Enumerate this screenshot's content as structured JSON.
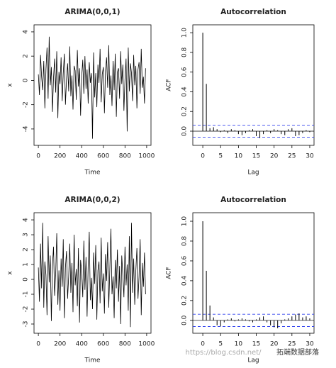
{
  "chart_data": [
    {
      "type": "line",
      "title": "ARIMA(0,0,1)",
      "x_label": "Time",
      "y_label": "x",
      "color": "#000000",
      "x": [
        0,
        10,
        20,
        30,
        40,
        50,
        60,
        70,
        80,
        90,
        100,
        110,
        120,
        130,
        140,
        150,
        160,
        170,
        180,
        190,
        200,
        210,
        220,
        230,
        240,
        250,
        260,
        270,
        280,
        290,
        300,
        310,
        320,
        330,
        340,
        350,
        360,
        370,
        380,
        390,
        400,
        410,
        420,
        430,
        440,
        450,
        460,
        470,
        480,
        490,
        500,
        510,
        520,
        530,
        540,
        550,
        560,
        570,
        580,
        590,
        600,
        610,
        620,
        630,
        640,
        650,
        660,
        670,
        680,
        690,
        700,
        710,
        720,
        730,
        740,
        750,
        760,
        770,
        780,
        790,
        800,
        810,
        820,
        830,
        840,
        850,
        860,
        870,
        880,
        890,
        900,
        910,
        920,
        930,
        940,
        950,
        960,
        970,
        980,
        990
      ],
      "values": [
        0.5,
        -1.2,
        2.1,
        0.3,
        -0.8,
        1.6,
        -2.3,
        0.9,
        2.7,
        -1.5,
        3.6,
        -0.4,
        1.1,
        -2.6,
        0.2,
        1.8,
        -1.0,
        2.4,
        -3.1,
        0.7,
        -0.3,
        1.9,
        -1.7,
        0.6,
        2.2,
        -2.0,
        0.1,
        1.4,
        -0.9,
        2.8,
        -1.3,
        0.4,
        -2.4,
        1.2,
        0.8,
        -1.6,
        2.5,
        -0.5,
        1.0,
        -2.9,
        0.3,
        1.7,
        -1.1,
        2.0,
        -0.7,
        0.9,
        -1.9,
        1.5,
        -0.2,
        0.6,
        -4.8,
        2.3,
        -1.4,
        0.6,
        -2.2,
        1.3,
        -0.2,
        2.6,
        -1.8,
        0.5,
        1.1,
        -2.7,
        0.8,
        1.9,
        -0.6,
        2.9,
        -1.2,
        0.4,
        -2.1,
        1.6,
        -0.8,
        2.2,
        -3.0,
        0.7,
        1.0,
        -1.5,
        2.4,
        -0.3,
        1.3,
        -2.5,
        0.1,
        1.8,
        -4.2,
        2.7,
        -0.9,
        1.4,
        0.6,
        -1.7,
        2.1,
        -0.4,
        1.2,
        -2.3,
        0.9,
        1.5,
        -1.1,
        2.6,
        -0.6,
        0.3,
        -1.9,
        1.0
      ],
      "xlim": [
        -40,
        1040
      ],
      "ylim": [
        -5.35,
        4.58
      ],
      "xticks": [
        0,
        200,
        400,
        600,
        800,
        1000
      ],
      "yticks": [
        -4,
        -2,
        0,
        2,
        4
      ]
    },
    {
      "type": "stem",
      "title": "Autocorrelation",
      "x_label": "Lag",
      "y_label": "ACF",
      "color": "#000000",
      "x": [
        0,
        1,
        2,
        3,
        4,
        5,
        6,
        7,
        8,
        9,
        10,
        11,
        12,
        13,
        14,
        15,
        16,
        17,
        18,
        19,
        20,
        21,
        22,
        23,
        24,
        25,
        26,
        27,
        28,
        29,
        30
      ],
      "values": [
        1.0,
        0.48,
        0.03,
        0.04,
        0.02,
        -0.01,
        0.01,
        -0.02,
        0.02,
        0.01,
        -0.03,
        -0.04,
        -0.02,
        0.01,
        0.02,
        -0.05,
        -0.07,
        -0.03,
        0.01,
        -0.02,
        0.02,
        0.01,
        -0.03,
        -0.04,
        0.02,
        0.03,
        -0.05,
        -0.04,
        -0.02,
        0.01,
        -0.01
      ],
      "bands": [
        0.062,
        -0.062
      ],
      "band_color": "#3344ee",
      "xlim": [
        -2.8,
        31.2
      ],
      "ylim": [
        -0.144,
        1.08
      ],
      "xticks": [
        0,
        5,
        10,
        15,
        20,
        25,
        30
      ],
      "yticks": [
        {
          "value": 0,
          "label": "0.0"
        },
        {
          "value": 0.2,
          "label": "0.2"
        },
        {
          "value": 0.4,
          "label": "0.4"
        },
        {
          "value": 0.6,
          "label": "0.6"
        },
        {
          "value": 0.8,
          "label": "0.8"
        },
        {
          "value": 1.0,
          "label": "1.0"
        }
      ]
    },
    {
      "type": "line",
      "title": "ARIMA(0,0,2)",
      "x_label": "Time",
      "y_label": "x",
      "color": "#000000",
      "x": [
        0,
        10,
        20,
        30,
        40,
        50,
        60,
        70,
        80,
        90,
        100,
        110,
        120,
        130,
        140,
        150,
        160,
        170,
        180,
        190,
        200,
        210,
        220,
        230,
        240,
        250,
        260,
        270,
        280,
        290,
        300,
        310,
        320,
        330,
        340,
        350,
        360,
        370,
        380,
        390,
        400,
        410,
        420,
        430,
        440,
        450,
        460,
        470,
        480,
        490,
        500,
        510,
        520,
        530,
        540,
        550,
        560,
        570,
        580,
        590,
        600,
        610,
        620,
        630,
        640,
        650,
        660,
        670,
        680,
        690,
        700,
        710,
        720,
        730,
        740,
        750,
        760,
        770,
        780,
        790,
        800,
        810,
        820,
        830,
        840,
        850,
        860,
        870,
        880,
        890,
        900,
        910,
        920,
        930,
        940,
        950,
        960,
        970,
        980,
        990
      ],
      "values": [
        0.8,
        -1.5,
        2.4,
        -0.6,
        3.8,
        -1.9,
        1.2,
        0.3,
        -2.4,
        2.9,
        -0.2,
        1.6,
        -2.8,
        0.9,
        2.2,
        -1.1,
        0.4,
        3.1,
        -1.7,
        0.6,
        -2.1,
        1.4,
        -0.5,
        2.7,
        -2.6,
        0.8,
        1.9,
        -1.3,
        0.2,
        2.4,
        -0.9,
        1.1,
        -2.2,
        3.0,
        -0.4,
        0.7,
        -1.8,
        2.1,
        -2.9,
        1.3,
        0.5,
        -1.2,
        2.6,
        -0.7,
        1.5,
        -2.5,
        0.9,
        3.2,
        -1.4,
        0.1,
        -2.0,
        1.8,
        -0.3,
        2.3,
        -2.7,
        0.6,
        1.2,
        -1.6,
        2.8,
        -0.8,
        0.4,
        -2.3,
        1.7,
        -0.1,
        2.5,
        -1.9,
        0.7,
        3.4,
        -1.0,
        0.2,
        -2.6,
        1.3,
        -0.6,
        2.0,
        -1.5,
        0.9,
        -3.0,
        1.6,
        0.3,
        -1.2,
        2.2,
        -0.4,
        1.0,
        -2.1,
        2.9,
        -3.2,
        3.8,
        -0.9,
        1.4,
        -1.7,
        0.6,
        2.1,
        -1.3,
        0.2,
        2.7,
        -2.4,
        1.1,
        -0.5,
        1.8,
        -1.0
      ],
      "xlim": [
        -40,
        1040
      ],
      "ylim": [
        -3.62,
        4.48
      ],
      "xticks": [
        0,
        200,
        400,
        600,
        800,
        1000
      ],
      "yticks": [
        -3,
        -2,
        -1,
        0,
        1,
        2,
        3,
        4
      ]
    },
    {
      "type": "stem",
      "title": "Autocorrelation",
      "x_label": "Lag",
      "y_label": "ACF",
      "color": "#000000",
      "x": [
        0,
        1,
        2,
        3,
        4,
        5,
        6,
        7,
        8,
        9,
        10,
        11,
        12,
        13,
        14,
        15,
        16,
        17,
        18,
        19,
        20,
        21,
        22,
        23,
        24,
        25,
        26,
        27,
        28,
        29,
        30
      ],
      "values": [
        1.0,
        0.5,
        0.15,
        0.03,
        -0.05,
        -0.06,
        -0.02,
        0.01,
        0.02,
        -0.01,
        0.01,
        0.02,
        0.01,
        -0.01,
        -0.02,
        0.01,
        0.03,
        0.04,
        -0.02,
        -0.05,
        -0.07,
        -0.08,
        -0.03,
        0.01,
        0.02,
        0.04,
        0.06,
        0.07,
        0.03,
        0.04,
        0.02
      ],
      "bands": [
        0.062,
        -0.062
      ],
      "band_color": "#3344ee",
      "xlim": [
        -2.8,
        31.2
      ],
      "ylim": [
        -0.13,
        1.086
      ],
      "xticks": [
        0,
        5,
        10,
        15,
        20,
        25,
        30
      ],
      "yticks": [
        {
          "value": 0,
          "label": "0.0"
        },
        {
          "value": 0.2,
          "label": "0.2"
        },
        {
          "value": 0.4,
          "label": "0.4"
        },
        {
          "value": 0.6,
          "label": "0.6"
        },
        {
          "value": 0.8,
          "label": "0.8"
        },
        {
          "value": 1.0,
          "label": "1.0"
        }
      ]
    }
  ],
  "watermark": {
    "url": "https://blog.csdn.net/",
    "brand": "拓端数据部落"
  }
}
